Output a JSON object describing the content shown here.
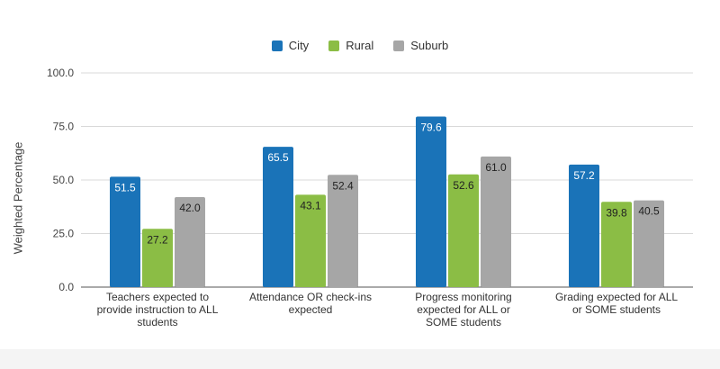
{
  "chart_data": {
    "type": "bar",
    "ylabel": "Weighted Percentage",
    "xlabel": "",
    "ylim": [
      0,
      100
    ],
    "yticks": [
      "0.0",
      "25.0",
      "50.0",
      "75.0",
      "100.0"
    ],
    "grid": true,
    "legend_position": "top-center",
    "categories": [
      "Teachers expected to provide instruction to ALL students",
      "Attendance OR check-ins expected",
      "Progress monitoring expected for ALL or SOME students",
      "Grading expected for ALL or SOME students"
    ],
    "series": [
      {
        "name": "City",
        "color": "#1a73b8",
        "values": [
          51.5,
          65.5,
          79.6,
          57.2
        ],
        "labels": [
          "51.5",
          "65.5",
          "79.6",
          "57.2"
        ]
      },
      {
        "name": "Rural",
        "color": "#8bbd45",
        "values": [
          27.2,
          43.1,
          52.6,
          39.8
        ],
        "labels": [
          "27.2",
          "43.1",
          "52.6",
          "39.8"
        ]
      },
      {
        "name": "Suburb",
        "color": "#a6a6a6",
        "values": [
          42.0,
          52.4,
          61.0,
          40.5
        ],
        "labels": [
          "42.0",
          "52.4",
          "61.0",
          "40.5"
        ]
      }
    ]
  }
}
